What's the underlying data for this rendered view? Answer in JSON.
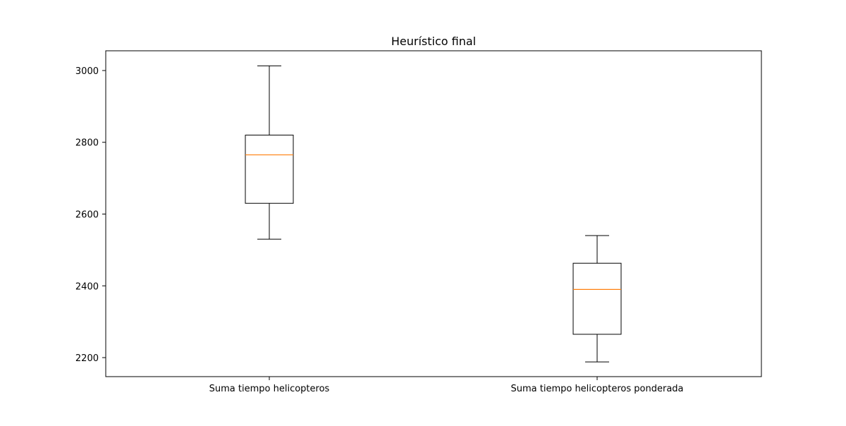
{
  "chart_data": {
    "type": "box",
    "title": "Heurístico final",
    "xlabel": "",
    "ylabel": "",
    "categories": [
      "Suma tiempo helicopteros",
      "Suma tiempo helicopteros ponderada"
    ],
    "boxes": [
      {
        "whisker_low": 2530,
        "q1": 2630,
        "median": 2765,
        "q3": 2820,
        "whisker_high": 3013
      },
      {
        "whisker_low": 2188,
        "q1": 2265,
        "median": 2390,
        "q3": 2463,
        "whisker_high": 2540
      }
    ],
    "yticks": [
      2200,
      2400,
      2600,
      2800,
      3000
    ],
    "ytick_labels": [
      "2200",
      "2400",
      "2600",
      "2800",
      "3000"
    ],
    "ylim": [
      2147,
      3055
    ],
    "grid": false,
    "colors": {
      "box": "#000000",
      "median": "#ff7f0e",
      "axes": "#000000",
      "background": "#ffffff"
    }
  }
}
